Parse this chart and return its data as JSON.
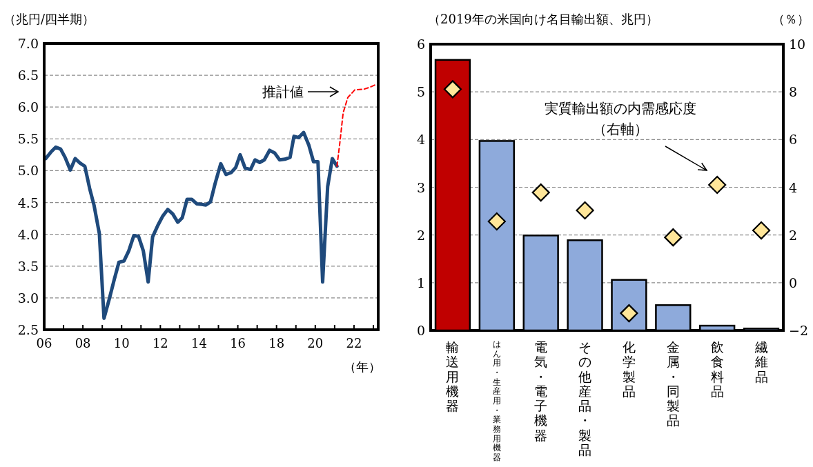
{
  "chart_data": [
    {
      "type": "line",
      "ylabel": "（兆円/四半期）",
      "xlabel": "（年）",
      "xlim": [
        2006,
        2023.25
      ],
      "xticks": [
        {
          "value": 2006,
          "label": "06"
        },
        {
          "value": 2007,
          "label": null
        },
        {
          "value": 2008,
          "label": "08"
        },
        {
          "value": 2009,
          "label": null
        },
        {
          "value": 2010,
          "label": "10"
        },
        {
          "value": 2011,
          "label": null
        },
        {
          "value": 2012,
          "label": "12"
        },
        {
          "value": 2013,
          "label": null
        },
        {
          "value": 2014,
          "label": "14"
        },
        {
          "value": 2015,
          "label": null
        },
        {
          "value": 2016,
          "label": "16"
        },
        {
          "value": 2017,
          "label": null
        },
        {
          "value": 2018,
          "label": "18"
        },
        {
          "value": 2019,
          "label": null
        },
        {
          "value": 2020,
          "label": "20"
        },
        {
          "value": 2021,
          "label": null
        },
        {
          "value": 2022,
          "label": "22"
        },
        {
          "value": 2023,
          "label": null
        }
      ],
      "ylim": [
        2.5,
        7.0
      ],
      "yticks": [
        {
          "value": 2.5,
          "label": "2.5"
        },
        {
          "value": 3,
          "label": "3.0"
        },
        {
          "value": 3.5,
          "label": "3.5"
        },
        {
          "value": 4,
          "label": "4.0"
        },
        {
          "value": 4.5,
          "label": "4.5"
        },
        {
          "value": 5,
          "label": "5.0"
        },
        {
          "value": 5.5,
          "label": "5.5"
        },
        {
          "value": 6,
          "label": "6.0"
        },
        {
          "value": 6.5,
          "label": "6.5"
        },
        {
          "value": 7,
          "label": "7.0"
        }
      ],
      "grid": "y",
      "marker": "none",
      "series": [
        {
          "color": "#1f4a7c",
          "line_style": "solid",
          "x": [
            2006.08,
            2006.37,
            2006.6,
            2006.85,
            2007.08,
            2007.35,
            2007.6,
            2007.85,
            2008.1,
            2008.35,
            2008.58,
            2008.85,
            2009.09,
            2009.36,
            2009.62,
            2009.86,
            2010.12,
            2010.37,
            2010.63,
            2010.87,
            2011.12,
            2011.37,
            2011.6,
            2011.87,
            2012.13,
            2012.38,
            2012.64,
            2012.9,
            2013.13,
            2013.38,
            2013.62,
            2013.88,
            2014.14,
            2014.35,
            2014.59,
            2014.82,
            2015.12,
            2015.39,
            2015.65,
            2015.89,
            2016.12,
            2016.38,
            2016.66,
            2016.89,
            2017.13,
            2017.37,
            2017.64,
            2017.9,
            2018.16,
            2018.43,
            2018.7,
            2018.9,
            2019.14,
            2019.4,
            2019.67,
            2019.91,
            2020.14,
            2020.38,
            2020.64,
            2020.88,
            2021.12
          ],
          "values": [
            5.19,
            5.3,
            5.37,
            5.34,
            5.21,
            5.01,
            5.19,
            5.12,
            5.07,
            4.72,
            4.45,
            4.01,
            2.68,
            2.98,
            3.29,
            3.56,
            3.58,
            3.74,
            3.98,
            3.97,
            3.74,
            3.25,
            3.96,
            4.14,
            4.29,
            4.39,
            4.32,
            4.19,
            4.26,
            4.55,
            4.55,
            4.48,
            4.47,
            4.46,
            4.51,
            4.79,
            5.11,
            4.94,
            4.97,
            5.05,
            5.25,
            5.04,
            5.02,
            5.17,
            5.13,
            5.17,
            5.32,
            5.28,
            5.17,
            5.18,
            5.21,
            5.54,
            5.52,
            5.6,
            5.4,
            5.14,
            5.14,
            3.25,
            4.75,
            5.19,
            5.07
          ]
        },
        {
          "color": "#ff0000",
          "line_style": "dashed",
          "x": [
            2021.12,
            2021.27,
            2021.44,
            2021.68,
            2022.04,
            2022.5,
            2022.8,
            2023.1
          ],
          "values": [
            5.07,
            5.44,
            5.91,
            6.15,
            6.27,
            6.28,
            6.31,
            6.35
          ]
        }
      ],
      "annotations": [
        "推計値"
      ]
    },
    {
      "type": "bar",
      "ylabel": "（2019年の米国向け名目輸出額、兆円）",
      "y2label": "（％）",
      "categories": [
        "輸送用機器",
        "はん用・生産用・業務用機器",
        "電気・電子機器",
        "その他産品・製品",
        "化学製品",
        "金属・同製品",
        "飲食料品",
        "繊維品"
      ],
      "ylim": [
        0,
        6
      ],
      "yticks": [
        0,
        1,
        2,
        3,
        4,
        5,
        6
      ],
      "y2lim": [
        -2,
        10
      ],
      "y2ticks": [
        {
          "value": -2,
          "label": "−2"
        },
        0,
        2,
        4,
        6,
        8,
        10
      ],
      "grid": "y",
      "series": [
        {
          "type": "bar",
          "colors": [
            "#c00000",
            "#8eaadb",
            "#8eaadb",
            "#8eaadb",
            "#8eaadb",
            "#8eaadb",
            "#8eaadb",
            "#8eaadb"
          ],
          "values": [
            5.67,
            3.97,
            1.99,
            1.89,
            1.06,
            0.53,
            0.1,
            0.04
          ]
        },
        {
          "type": "scatter",
          "axis": "y2",
          "marker": "diamond",
          "color": "#ffe699",
          "values": [
            8.11,
            2.57,
            3.78,
            3.03,
            -1.28,
            1.9,
            4.1,
            2.19
          ]
        }
      ],
      "annotations": [
        "実質輸出額の内需感応度",
        "（右軸）"
      ]
    }
  ]
}
